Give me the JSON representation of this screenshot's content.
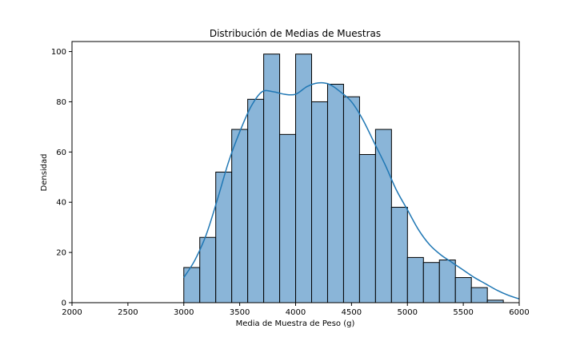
{
  "chart_data": {
    "type": "bar",
    "title": "Distribución de Medias de Muestras",
    "xlabel": "Media de Muestra de Peso (g)",
    "ylabel": "Densidad",
    "xlim": [
      2000,
      6000
    ],
    "ylim": [
      0,
      104
    ],
    "xticks": [
      2000,
      2500,
      3000,
      3500,
      4000,
      4500,
      5000,
      5500,
      6000
    ],
    "yticks": [
      0,
      20,
      40,
      60,
      80,
      100
    ],
    "grid": false,
    "colors": {
      "bar_fill": "#8ab5d8",
      "bar_edge": "#000000",
      "kde": "#1f77b4"
    },
    "bins": {
      "start": 3000,
      "width": 142.9,
      "counts": [
        14,
        26,
        52,
        69,
        81,
        99,
        67,
        99,
        80,
        87,
        82,
        59,
        69,
        38,
        18,
        16,
        17,
        10,
        6,
        1
      ]
    },
    "kde": {
      "x": [
        3000,
        3100,
        3200,
        3300,
        3400,
        3500,
        3600,
        3700,
        3800,
        3900,
        4000,
        4100,
        4200,
        4300,
        4400,
        4500,
        4600,
        4700,
        4800,
        4900,
        5000,
        5100,
        5200,
        5300,
        5400,
        5500,
        5600,
        5700,
        5800,
        5900,
        6000
      ],
      "y": [
        10,
        17,
        27,
        41,
        56,
        68,
        78,
        84,
        84,
        83,
        83,
        86,
        87.5,
        87,
        84,
        80,
        73,
        64,
        55,
        45,
        37,
        29,
        23,
        19,
        16,
        13,
        10,
        7.5,
        5,
        3,
        1.5
      ]
    }
  }
}
